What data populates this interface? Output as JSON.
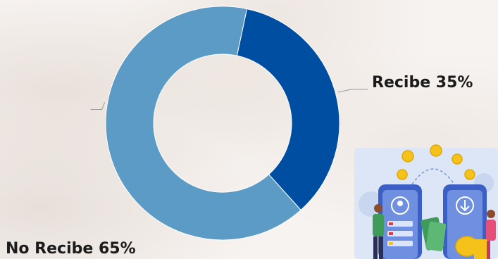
{
  "chart_data": {
    "type": "pie",
    "donut": true,
    "title": "",
    "categories": [
      "Recibe",
      "No Recibe"
    ],
    "values": [
      35,
      65
    ],
    "labels": [
      "Recibe 35%",
      "No Recibe 65%"
    ],
    "colors": [
      "#004ea2",
      "#5b9bc6"
    ],
    "legend": "none"
  },
  "illustration": {
    "icon": "mobile-money-transfer-illustration",
    "colors": {
      "background": "#dde6f7",
      "phone": "#3b5fc4",
      "coin": "#f4c21a",
      "bill": "#3f9b5a"
    }
  }
}
